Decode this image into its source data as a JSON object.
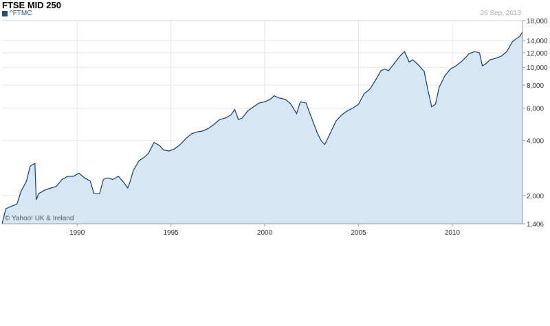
{
  "header": {
    "title": "FTSE MID 250",
    "legend_label": "^FTMC",
    "date": "26 Sep, 2013"
  },
  "credit": "© Yahoo! UK & Ireland",
  "colors": {
    "line": "#0b3c7a",
    "fill": "#d6e6f2",
    "grid": "#e4e4e4",
    "legend": "#1a4f8a"
  },
  "chart_data": {
    "type": "area",
    "title": "FTSE MID 250",
    "series": [
      {
        "name": "^FTMC",
        "x": [
          1986.0,
          1986.2,
          1986.5,
          1986.8,
          1987.0,
          1987.3,
          1987.5,
          1987.75,
          1987.82,
          1987.95,
          1988.3,
          1988.6,
          1988.9,
          1989.2,
          1989.5,
          1989.8,
          1990.1,
          1990.4,
          1990.7,
          1990.9,
          1991.2,
          1991.4,
          1991.6,
          1991.9,
          1992.2,
          1992.5,
          1992.7,
          1992.8,
          1993.0,
          1993.3,
          1993.6,
          1993.8,
          1994.1,
          1994.4,
          1994.6,
          1994.9,
          1995.2,
          1995.5,
          1995.8,
          1996.1,
          1996.4,
          1996.7,
          1997.0,
          1997.3,
          1997.6,
          1997.9,
          1998.2,
          1998.4,
          1998.6,
          1998.8,
          1999.1,
          1999.4,
          1999.7,
          2000.0,
          2000.3,
          2000.5,
          2000.8,
          2001.1,
          2001.4,
          2001.7,
          2001.9,
          2002.2,
          2002.5,
          2002.8,
          2003.0,
          2003.2,
          2003.5,
          2003.8,
          2004.1,
          2004.4,
          2004.7,
          2005.0,
          2005.3,
          2005.6,
          2005.9,
          2006.2,
          2006.4,
          2006.6,
          2006.9,
          2007.2,
          2007.45,
          2007.7,
          2007.9,
          2008.2,
          2008.5,
          2008.7,
          2008.9,
          2009.1,
          2009.3,
          2009.6,
          2009.9,
          2010.2,
          2010.5,
          2010.7,
          2010.9,
          2011.2,
          2011.45,
          2011.6,
          2011.8,
          2012.0,
          2012.3,
          2012.6,
          2012.9,
          2013.2,
          2013.4,
          2013.6,
          2013.74
        ],
        "values": [
          1406,
          1700,
          1750,
          1800,
          2100,
          2400,
          2900,
          3000,
          1900,
          2050,
          2150,
          2200,
          2250,
          2450,
          2550,
          2550,
          2650,
          2500,
          2400,
          2050,
          2050,
          2450,
          2500,
          2450,
          2550,
          2350,
          2200,
          2350,
          2750,
          3100,
          3250,
          3400,
          3900,
          3750,
          3550,
          3500,
          3600,
          3800,
          4100,
          4350,
          4450,
          4500,
          4650,
          4900,
          5200,
          5300,
          5500,
          5900,
          5200,
          5300,
          5800,
          6100,
          6400,
          6500,
          6700,
          7000,
          6800,
          6700,
          6300,
          5600,
          6500,
          6400,
          5300,
          4400,
          4000,
          3800,
          4400,
          5100,
          5500,
          5800,
          6000,
          6300,
          7200,
          7600,
          8500,
          9600,
          9800,
          9600,
          10500,
          11500,
          12200,
          10700,
          11000,
          10300,
          9500,
          7500,
          6100,
          6300,
          7800,
          9000,
          9800,
          10200,
          10800,
          11300,
          11900,
          12200,
          12000,
          10200,
          10500,
          11000,
          11200,
          11500,
          12200,
          13800,
          14300,
          14800,
          15600
        ]
      }
    ],
    "xlim": [
      1986.0,
      2013.74
    ],
    "ylim": [
      1406,
      18000
    ],
    "yscale": "log",
    "x_ticks": [
      1990,
      1995,
      2000,
      2005,
      2010
    ],
    "x_tick_labels": [
      "1990",
      "1995",
      "2000",
      "2005",
      "2010"
    ],
    "y_ticks": [
      1406,
      2000,
      4000,
      6000,
      8000,
      10000,
      12000,
      14000,
      18000
    ],
    "y_tick_labels": [
      "1,406",
      "2,000",
      "4,000",
      "6,000",
      "8,000",
      "10,000",
      "12,000",
      "14,000",
      "18,000"
    ],
    "grid": true,
    "legend": "top-left"
  }
}
